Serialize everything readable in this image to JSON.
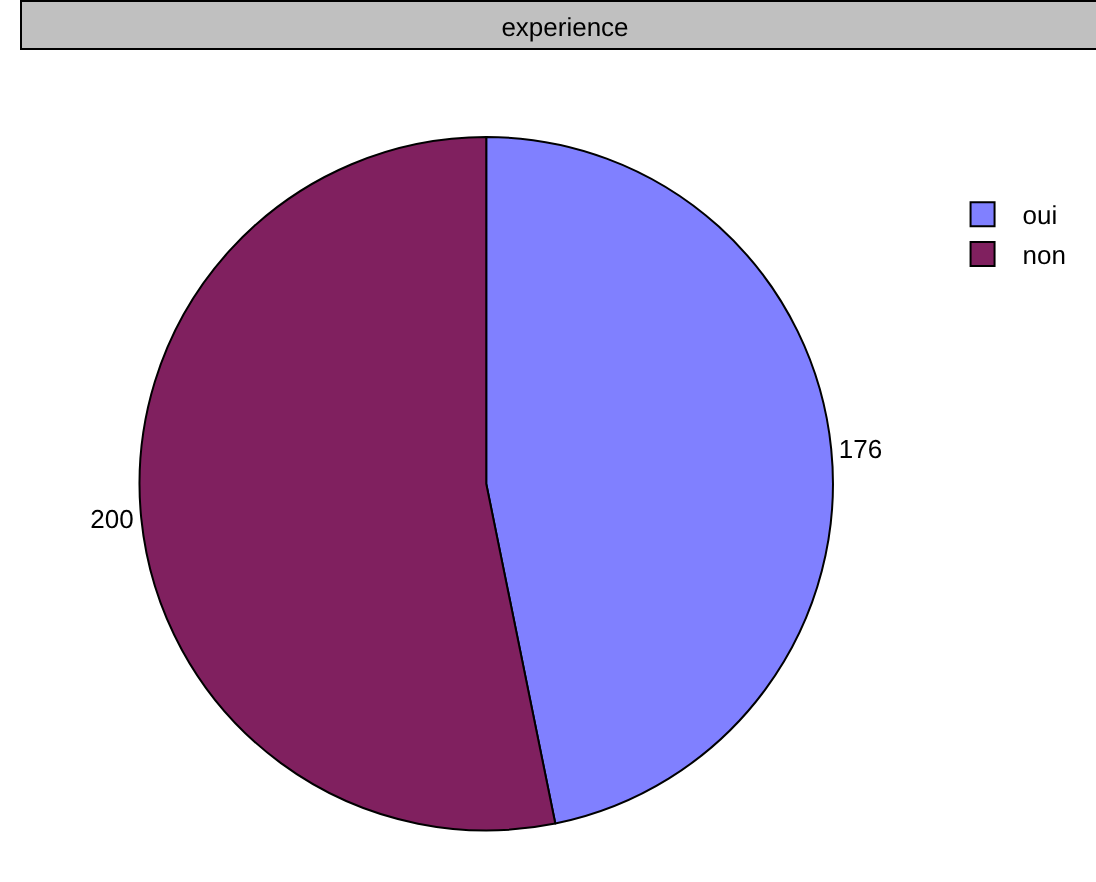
{
  "chart_data": {
    "type": "pie",
    "title": "experience",
    "categories": [
      "oui",
      "non"
    ],
    "values": [
      176,
      200
    ],
    "colors": [
      "#8080ff",
      "#80205f"
    ],
    "data_labels": true,
    "legend": "top right"
  }
}
